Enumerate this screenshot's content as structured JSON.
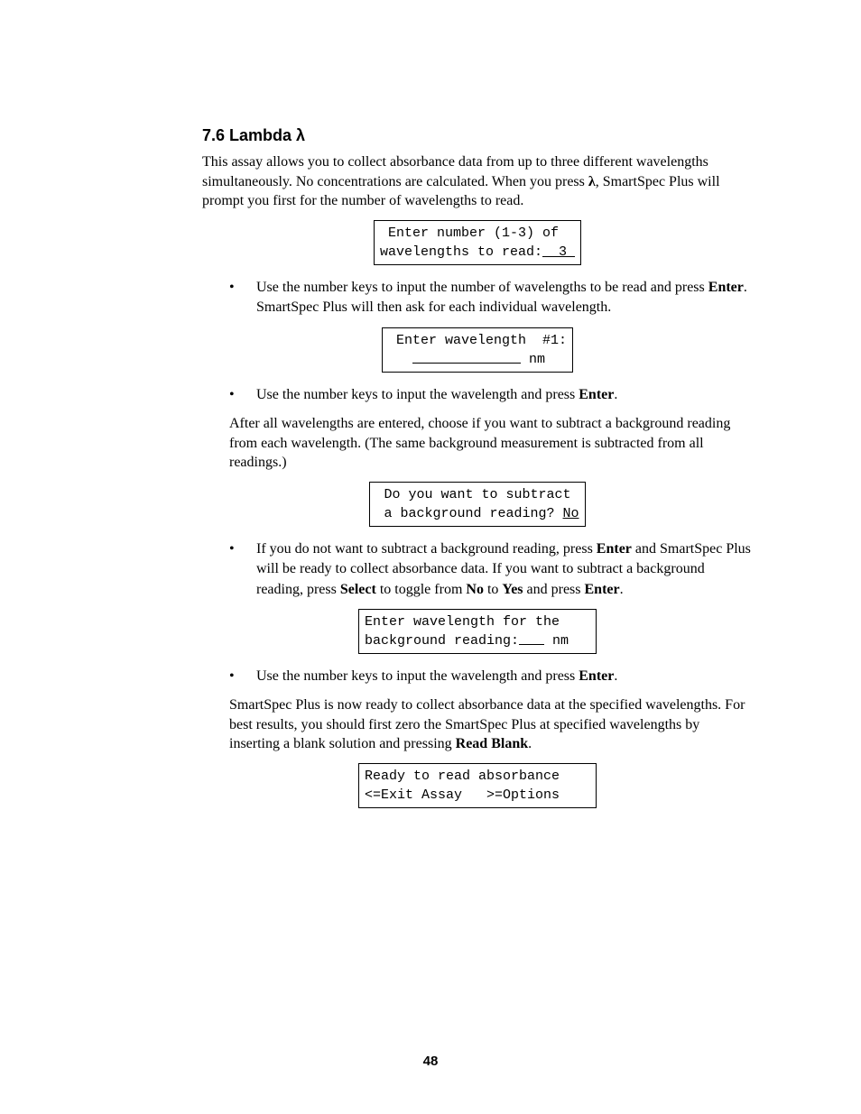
{
  "heading": "7.6  Lambda λ",
  "intro": "This assay allows you to collect absorbance data from up to three different wavelengths simultaneously. No concentrations are calculated. When you press ",
  "intro_bold1": "λ",
  "intro_cont": ", SmartSpec Plus will prompt you first for the number of wavelengths to read.",
  "lcd1_l1": " Enter number (1-3) of",
  "lcd1_l2a": "wavelengths to read:",
  "lcd1_l2_val": "  3 ",
  "bullet1a": "Use the number keys to input the number of wavelengths to be read and press ",
  "bullet1b": "Enter",
  "bullet1c": ". SmartSpec Plus will then ask for each individual wavelength.",
  "lcd2_l1": " Enter wavelength  #1:",
  "lcd2_l2_suffix": " nm ",
  "bullet2a": "Use the number keys to input the wavelength and press ",
  "bullet2b": "Enter",
  "bullet2c": ".",
  "para2": "After all wavelengths are entered, choose if you want to subtract a background reading from each wavelength. (The same background measurement is subtracted from all readings.)",
  "lcd3_l1": " Do you want to subtract",
  "lcd3_l2a": " a background reading? ",
  "lcd3_l2_val": "No",
  "bullet3a": "If you do not want to subtract a background reading, press ",
  "bullet3b": "Enter",
  "bullet3c": " and SmartSpec Plus will be ready to collect absorbance data. If you want to subtract a background reading, press ",
  "bullet3d": "Select",
  "bullet3e": " to toggle from ",
  "bullet3f": "No",
  "bullet3g": " to ",
  "bullet3h": "Yes",
  "bullet3i": " and press ",
  "bullet3j": "Enter",
  "bullet3k": ".",
  "lcd4_l1": "Enter wavelength for the",
  "lcd4_l2a": "background reading:",
  "lcd4_l2_suffix": " nm",
  "bullet4a": "Use the number keys to input the wavelength and press ",
  "bullet4b": "Enter",
  "bullet4c": ".",
  "para3a": "SmartSpec Plus is now ready to collect absorbance data at the specified wavelengths. For best results, you should first zero the SmartSpec Plus at specified wavelengths by inserting a blank solution and pressing ",
  "para3b": "Read Blank",
  "para3c": ".",
  "lcd5_l1": "Ready to read absorbance",
  "lcd5_l2": "<=Exit Assay   >=Options",
  "page_number": "48"
}
